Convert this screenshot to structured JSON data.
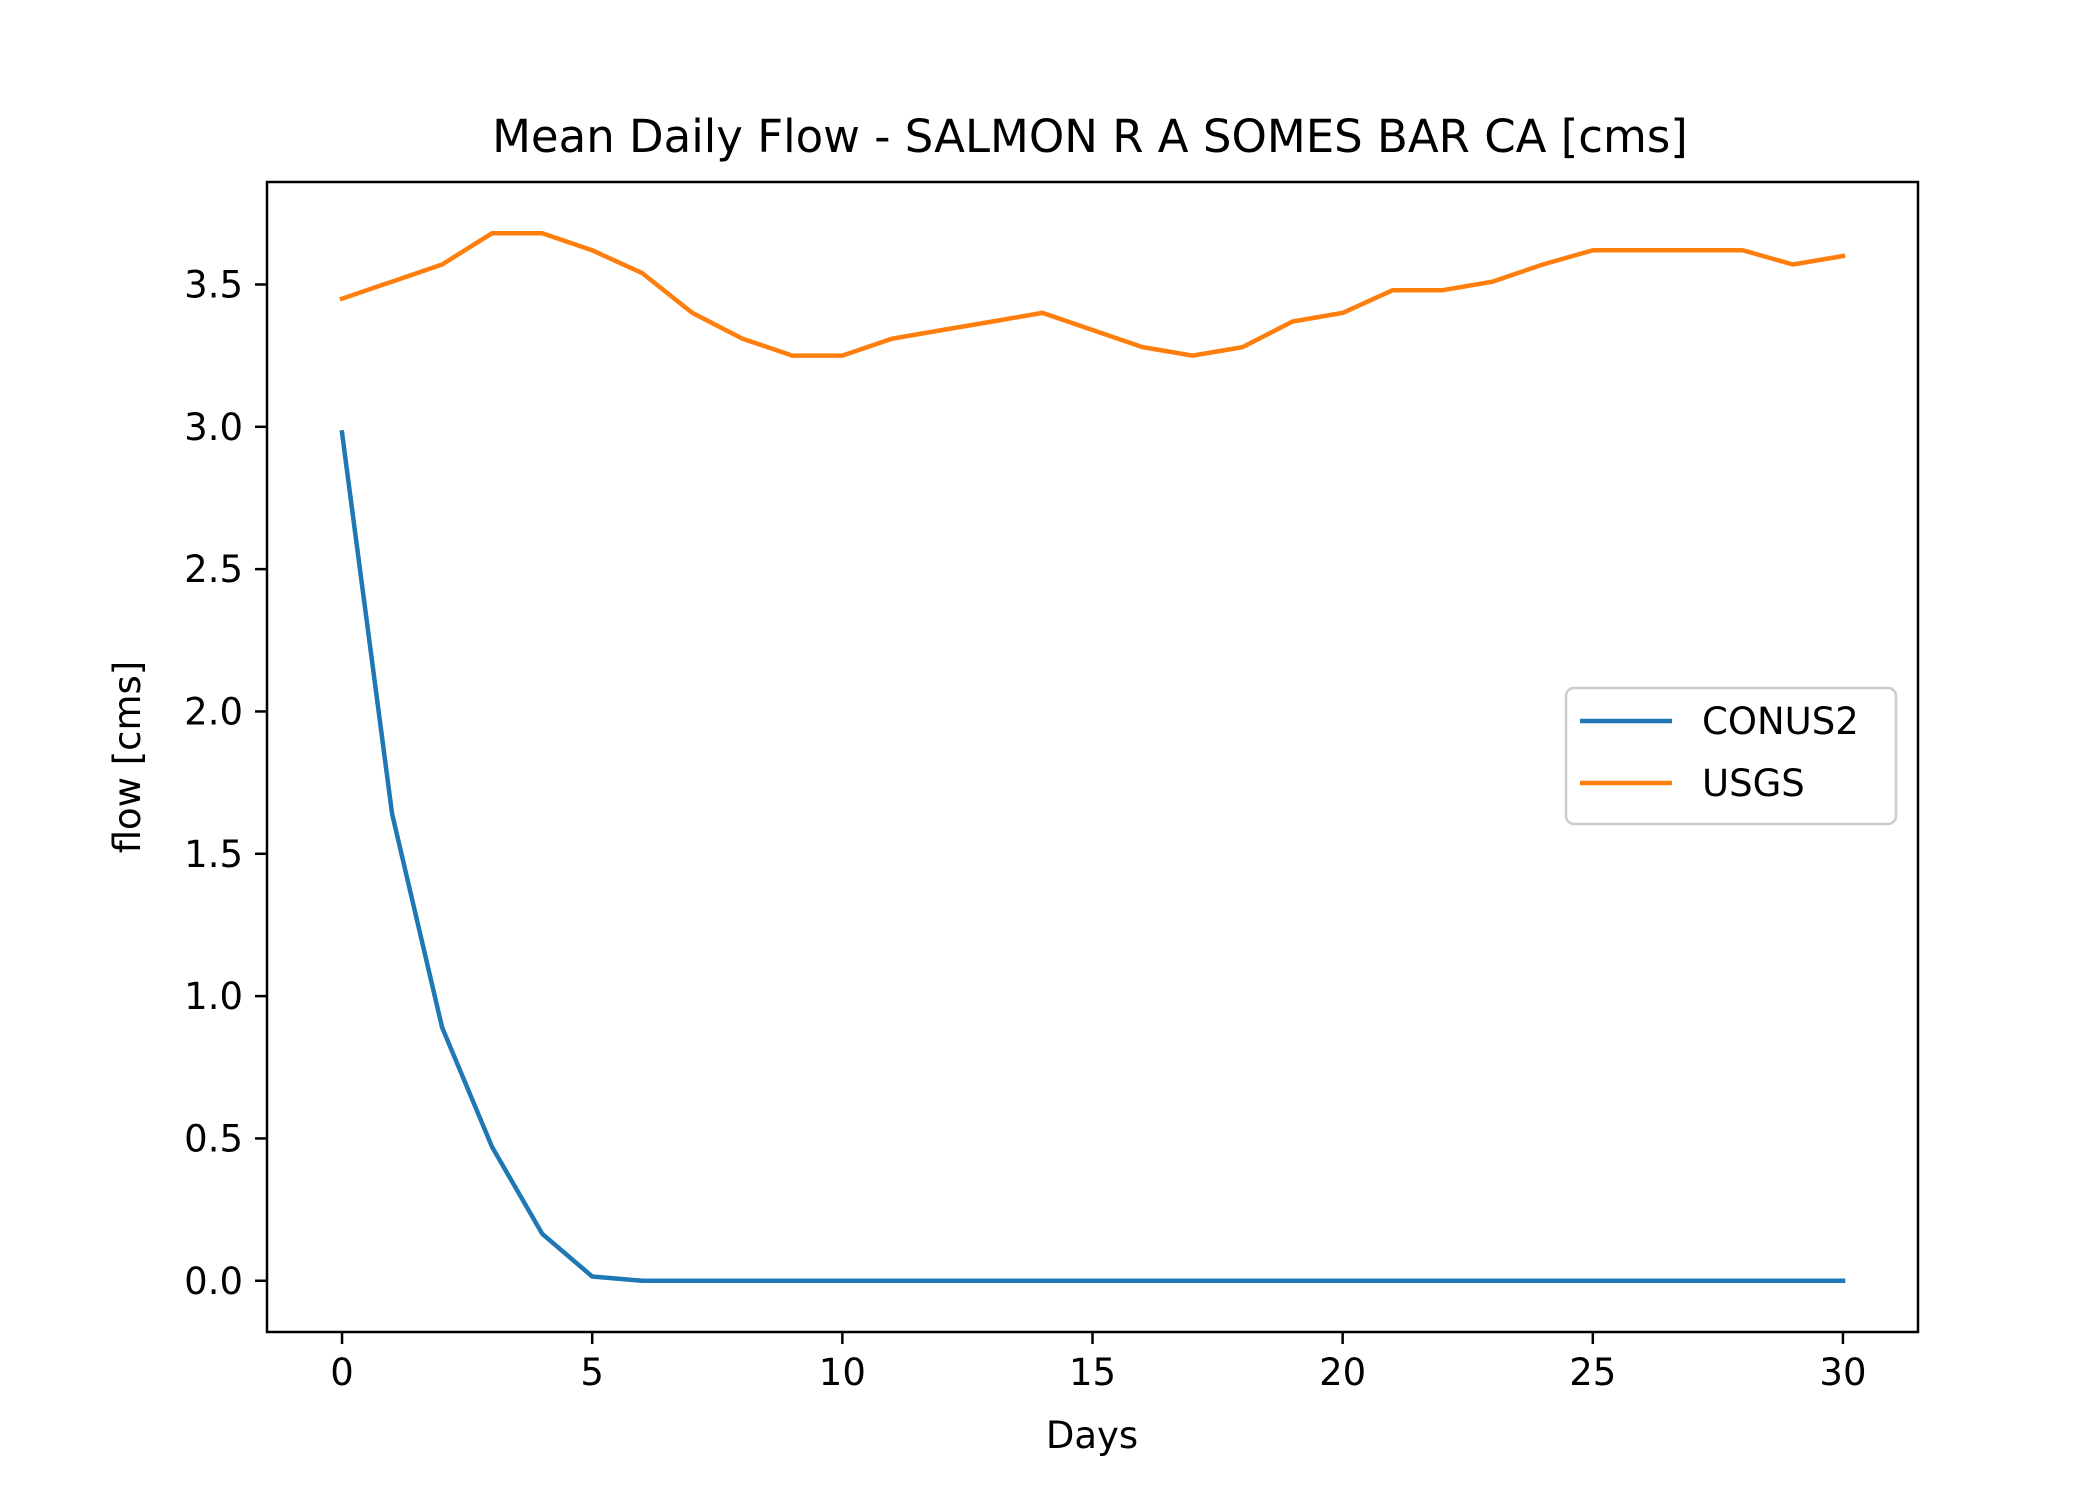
{
  "chart_data": {
    "type": "line",
    "title": "Mean Daily Flow - SALMON R A SOMES BAR CA [cms]",
    "xlabel": "Days",
    "ylabel": "flow [cms]",
    "xlim": [
      -1.5,
      31.5
    ],
    "ylim": [
      -0.18,
      3.86
    ],
    "xticks": [
      0,
      5,
      10,
      15,
      20,
      25,
      30
    ],
    "xtick_labels": [
      "0",
      "5",
      "10",
      "15",
      "20",
      "25",
      "30"
    ],
    "yticks": [
      0.0,
      0.5,
      1.0,
      1.5,
      2.0,
      2.5,
      3.0,
      3.5
    ],
    "ytick_labels": [
      "0.0",
      "0.5",
      "1.0",
      "1.5",
      "2.0",
      "2.5",
      "3.0",
      "3.5"
    ],
    "grid": false,
    "legend_position": "center-right",
    "x": [
      0,
      1,
      2,
      3,
      4,
      5,
      6,
      7,
      8,
      9,
      10,
      11,
      12,
      13,
      14,
      15,
      16,
      17,
      18,
      19,
      20,
      21,
      22,
      23,
      24,
      25,
      26,
      27,
      28,
      29,
      30
    ],
    "series": [
      {
        "name": "CONUS2",
        "color": "#1f77b4",
        "values": [
          2.98,
          1.64,
          0.89,
          0.47,
          0.165,
          0.015,
          0.0,
          0.0,
          0.0,
          0.0,
          0.0,
          0.0,
          0.0,
          0.0,
          0.0,
          0.0,
          0.0,
          0.0,
          0.0,
          0.0,
          0.0,
          0.0,
          0.0,
          0.0,
          0.0,
          0.0,
          0.0,
          0.0,
          0.0,
          0.0,
          0.0
        ]
      },
      {
        "name": "USGS",
        "color": "#ff7f0e",
        "values": [
          3.45,
          3.51,
          3.57,
          3.68,
          3.68,
          3.62,
          3.54,
          3.4,
          3.31,
          3.25,
          3.25,
          3.31,
          3.34,
          3.37,
          3.4,
          3.34,
          3.28,
          3.25,
          3.28,
          3.37,
          3.4,
          3.48,
          3.48,
          3.51,
          3.57,
          3.62,
          3.62,
          3.62,
          3.62,
          3.57,
          3.6
        ]
      }
    ]
  }
}
